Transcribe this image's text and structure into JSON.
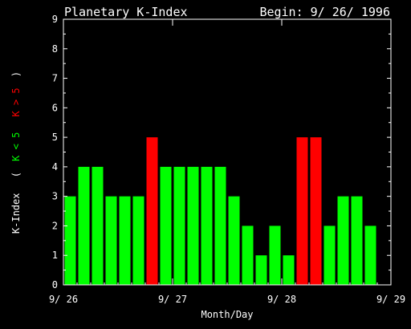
{
  "chart_data": {
    "type": "bar",
    "title": "Planetary K-Index",
    "begin_label": "Begin: 9/ 26/ 1996",
    "xlabel": "Month/Day",
    "ylabel": "K-Index",
    "legend": {
      "open": "(",
      "low_label": "K < 5",
      "high_label": "K > 5",
      "close": ")"
    },
    "ylim": [
      0,
      9
    ],
    "y_ticks": [
      "0",
      "1",
      "2",
      "3",
      "4",
      "5",
      "6",
      "7",
      "8",
      "9"
    ],
    "x_ticks": [
      "9/ 26",
      "9/ 27",
      "9/ 28",
      "9/ 29"
    ],
    "x_ticks_at": [
      0,
      8,
      16,
      24
    ],
    "bars_per_day": 8,
    "values": [
      3,
      4,
      4,
      3,
      3,
      3,
      5,
      4,
      4,
      4,
      4,
      4,
      3,
      2,
      1,
      2,
      1,
      5,
      5,
      2,
      3,
      3,
      2
    ],
    "threshold": 5,
    "colors": {
      "low": "#00ff00",
      "high": "#ff0000",
      "axes": "#ffffff",
      "background": "#000000"
    }
  }
}
